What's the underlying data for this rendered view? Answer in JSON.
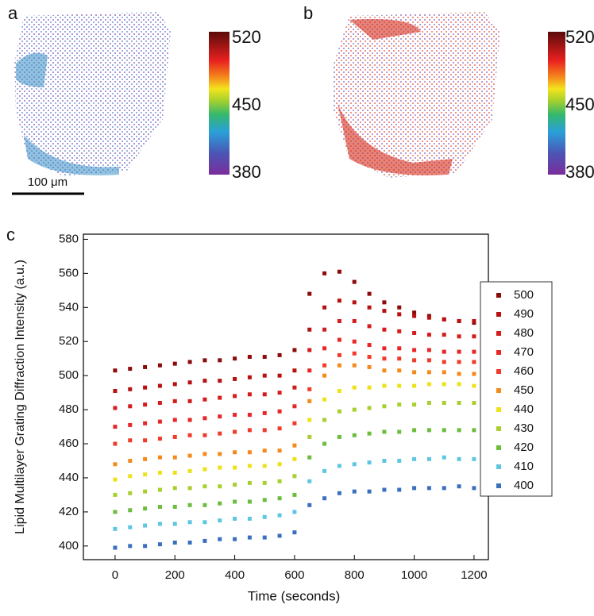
{
  "panels": {
    "a": {
      "label": "a",
      "scale_bar": "100 μm",
      "colorbar_ticks": [
        "520",
        "450",
        "380"
      ]
    },
    "b": {
      "label": "b",
      "colorbar_ticks": [
        "520",
        "450",
        "380"
      ]
    }
  },
  "chart_data": {
    "type": "scatter",
    "panel_label": "c",
    "x_label": "Time (seconds)",
    "y_label": "Lipid Multilayer Grating Diffraction Intensity (a.u.)",
    "x": [
      0,
      50,
      100,
      150,
      200,
      250,
      300,
      350,
      400,
      450,
      500,
      550,
      600,
      650,
      700,
      750,
      800,
      850,
      900,
      950,
      1000,
      1050,
      1100,
      1150,
      1200
    ],
    "xlim": [
      -106,
      1248
    ],
    "xticks": [
      0,
      200,
      400,
      600,
      800,
      1000,
      1200
    ],
    "ylim": [
      392,
      583
    ],
    "yticks": [
      400,
      420,
      440,
      460,
      480,
      500,
      520,
      540,
      560,
      580
    ],
    "legend": "right",
    "series": [
      {
        "name": "500",
        "color": "#8b0a0a",
        "values": [
          503,
          504,
          505,
          506,
          507,
          508,
          509,
          509,
          510,
          511,
          511,
          512,
          515,
          548,
          560,
          561,
          555,
          548,
          543,
          540,
          537,
          535,
          533,
          532,
          531
        ]
      },
      {
        "name": "490",
        "color": "#b81010",
        "values": [
          491,
          492,
          493,
          494,
          495,
          496,
          497,
          497,
          498,
          499,
          500,
          500,
          503,
          527,
          540,
          544,
          543,
          540,
          538,
          536,
          535,
          534,
          533,
          532,
          532
        ]
      },
      {
        "name": "480",
        "color": "#d41c1c",
        "values": [
          481,
          482,
          483,
          484,
          485,
          485,
          486,
          487,
          488,
          489,
          489,
          490,
          493,
          515,
          527,
          532,
          532,
          529,
          527,
          526,
          525,
          524,
          524,
          523,
          523
        ]
      },
      {
        "name": "470",
        "color": "#e82626",
        "values": [
          470,
          471,
          472,
          473,
          474,
          474,
          475,
          476,
          477,
          477,
          478,
          479,
          482,
          503,
          516,
          521,
          520,
          518,
          516,
          516,
          515,
          515,
          514,
          514,
          514
        ]
      },
      {
        "name": "460",
        "color": "#f03a2a",
        "values": [
          460,
          462,
          462,
          463,
          464,
          465,
          465,
          466,
          467,
          468,
          468,
          469,
          472,
          492,
          506,
          512,
          513,
          511,
          510,
          510,
          509,
          509,
          508,
          508,
          508
        ]
      },
      {
        "name": "450",
        "color": "#f58a1c",
        "values": [
          448,
          450,
          451,
          452,
          452,
          453,
          454,
          454,
          455,
          455,
          456,
          456,
          459,
          485,
          500,
          506,
          506,
          505,
          503,
          503,
          502,
          502,
          502,
          501,
          501
        ]
      },
      {
        "name": "440",
        "color": "#ede21a",
        "values": [
          439,
          441,
          442,
          443,
          443,
          444,
          445,
          446,
          446,
          447,
          447,
          448,
          451,
          474,
          486,
          491,
          493,
          493,
          494,
          494,
          494,
          495,
          495,
          495,
          494
        ]
      },
      {
        "name": "430",
        "color": "#a9cf2e",
        "values": [
          430,
          431,
          432,
          433,
          434,
          434,
          435,
          435,
          436,
          437,
          437,
          438,
          441,
          464,
          474,
          479,
          480,
          481,
          482,
          483,
          483,
          484,
          484,
          484,
          484
        ]
      },
      {
        "name": "420",
        "color": "#6cbd3c",
        "values": [
          420,
          421,
          422,
          423,
          423,
          424,
          424,
          425,
          426,
          426,
          427,
          428,
          430,
          452,
          460,
          464,
          465,
          466,
          467,
          467,
          468,
          468,
          468,
          468,
          468
        ]
      },
      {
        "name": "410",
        "color": "#5ec6e2",
        "values": [
          410,
          411,
          412,
          413,
          413,
          414,
          414,
          415,
          416,
          416,
          417,
          418,
          420,
          438,
          444,
          447,
          448,
          449,
          450,
          450,
          451,
          451,
          452,
          451,
          451
        ]
      },
      {
        "name": "400",
        "color": "#3a6fbe",
        "values": [
          399,
          400,
          400,
          401,
          402,
          402,
          403,
          404,
          404,
          405,
          405,
          406,
          408,
          424,
          428,
          431,
          432,
          432,
          433,
          433,
          434,
          434,
          434,
          435,
          434
        ]
      }
    ]
  }
}
